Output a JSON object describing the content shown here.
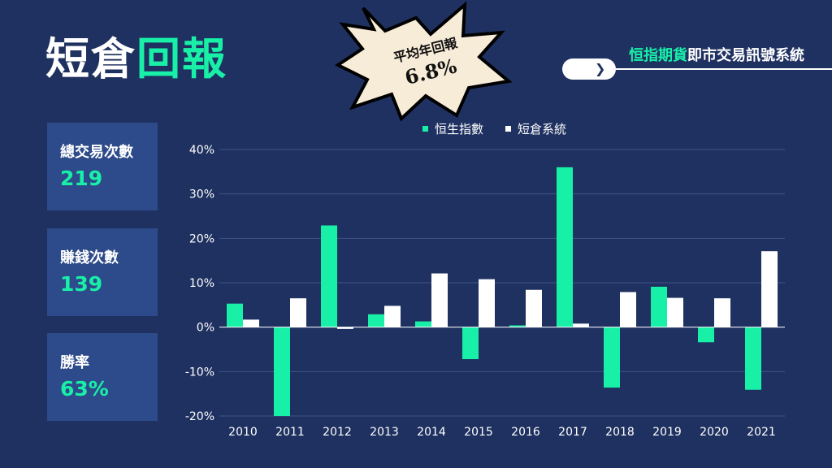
{
  "header": {
    "title_main": "短倉",
    "title_accent": "回報",
    "brand_accent": "恒指期貨",
    "brand_rest": "即市交易訊號系統"
  },
  "badge": {
    "line1": "平均年回報",
    "line2": "6.8%"
  },
  "stats": [
    {
      "label": "總交易次數",
      "value": "219"
    },
    {
      "label": "賺錢次數",
      "value": "139"
    },
    {
      "label": "勝率",
      "value": "63%"
    }
  ],
  "icons": {
    "arrow": "chevron-right-icon"
  },
  "colors": {
    "background": "#1f3160",
    "card": "#2d4a8a",
    "accent": "#18f0a8",
    "series_hsi": "#18f0a8",
    "series_short": "#ffffff"
  },
  "chart_data": {
    "type": "bar",
    "categories": [
      "2010",
      "2011",
      "2012",
      "2013",
      "2014",
      "2015",
      "2016",
      "2017",
      "2018",
      "2019",
      "2020",
      "2021"
    ],
    "series": [
      {
        "name": "恒生指數",
        "values": [
          5.3,
          -20,
          22.9,
          2.9,
          1.3,
          -7.2,
          0.4,
          36,
          -13.6,
          9.1,
          -3.4,
          -14.1
        ]
      },
      {
        "name": "短倉系統",
        "values": [
          1.7,
          6.5,
          -0.4,
          4.8,
          12.1,
          10.8,
          8.4,
          0.8,
          7.9,
          6.6,
          6.5,
          17.1
        ]
      }
    ],
    "y_ticks": [
      "-20%",
      "-10%",
      "0%",
      "10%",
      "20%",
      "30%",
      "40%"
    ],
    "y_tick_values": [
      -20,
      -10,
      0,
      10,
      20,
      30,
      40
    ],
    "ylim": [
      -20,
      40
    ],
    "legend": "top-center",
    "grid": true
  }
}
